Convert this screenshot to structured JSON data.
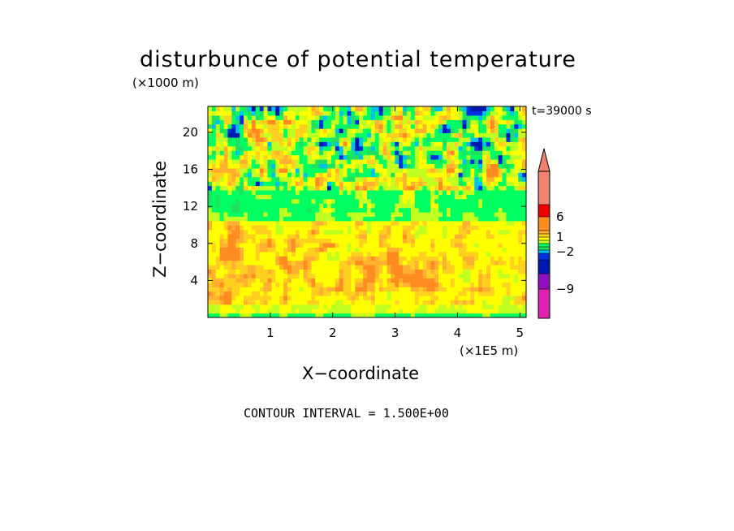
{
  "chart_data": {
    "type": "heatmap",
    "title": "disturbunce of potential temperature",
    "xlabel": "X−coordinate",
    "ylabel": "Z−coordinate",
    "x_unit": "(×1E5 m)",
    "z_unit": "(×1000 m)",
    "time_label": "t=39000 s",
    "footer": "CONTOUR INTERVAL = 1.500E+00",
    "xlim": [
      0,
      5.1
    ],
    "ylim": [
      0,
      22.8
    ],
    "x_ticks": [
      1,
      2,
      3,
      4,
      5
    ],
    "y_ticks": [
      4,
      8,
      12,
      16,
      20
    ],
    "x_tick_labels": [
      "1",
      "2",
      "3",
      "4",
      "5"
    ],
    "y_tick_labels": [
      "4",
      "8",
      "12",
      "16",
      "20"
    ],
    "colorbar": {
      "labels": [
        {
          "text": "6",
          "value": 6
        },
        {
          "text": "1",
          "value": 1
        },
        {
          "text": "−2",
          "value": -2
        },
        {
          "text": "−9",
          "value": -9
        }
      ],
      "bands": [
        {
          "color": "#e020b0"
        },
        {
          "color": "#9010c0"
        },
        {
          "color": "#0018b0"
        },
        {
          "color": "#0030e0"
        },
        {
          "color": "#00c0f0"
        },
        {
          "color": "#20e060"
        },
        {
          "color": "#00ff60"
        },
        {
          "color": "#c0ff20"
        },
        {
          "color": "#ffff00"
        },
        {
          "color": "#ffd020"
        },
        {
          "color": "#ffb030"
        },
        {
          "color": "#ff8c20"
        },
        {
          "color": "#ee0000"
        },
        {
          "color": "#f08070"
        }
      ]
    },
    "layers": [
      {
        "z_range": [
          0,
          0.8
        ],
        "dominant": "green",
        "value": -1
      },
      {
        "z_range": [
          0.8,
          10
        ],
        "dominant": "yellow/orange",
        "value": 1.5
      },
      {
        "z_range": [
          10,
          14
        ],
        "dominant": "green",
        "value": -0.5
      },
      {
        "z_range": [
          14,
          22.8
        ],
        "dominant": "mixed orange/blue",
        "value": 0
      }
    ]
  }
}
